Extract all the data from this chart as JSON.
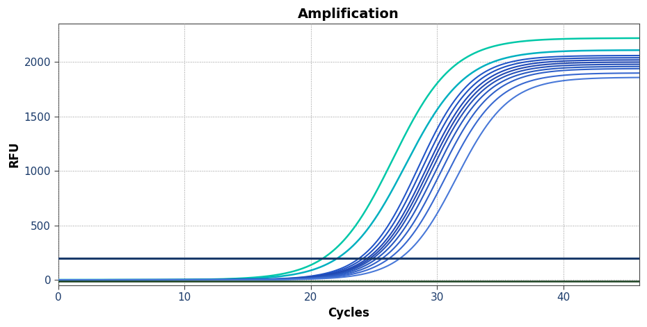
{
  "title": "Amplification",
  "xlabel": "Cycles",
  "ylabel": "RFU",
  "xlim": [
    0,
    46
  ],
  "ylim": [
    -50,
    2350
  ],
  "xticks": [
    0,
    10,
    20,
    30,
    40
  ],
  "yticks": [
    0,
    500,
    1000,
    1500,
    2000
  ],
  "background_color": "#ffffff",
  "threshold_y": 200,
  "threshold_color": "#1a3a6a",
  "threshold_lw": 2.2,
  "baseline_y": -15,
  "baseline_color": "#1a4020",
  "baseline_lw": 1.8,
  "sigmoid_curves": [
    {
      "midpoint": 26.5,
      "plateau": 2220,
      "steepness": 0.42,
      "color": "#00c8a8",
      "lw": 1.8
    },
    {
      "midpoint": 27.5,
      "plateau": 2110,
      "steepness": 0.42,
      "color": "#00b0c0",
      "lw": 1.8
    },
    {
      "midpoint": 28.5,
      "plateau": 2060,
      "steepness": 0.48,
      "color": "#2255c8",
      "lw": 1.5
    },
    {
      "midpoint": 28.8,
      "plateau": 2040,
      "steepness": 0.48,
      "color": "#2050c0",
      "lw": 1.5
    },
    {
      "midpoint": 29.1,
      "plateau": 2020,
      "steepness": 0.48,
      "color": "#1e48b8",
      "lw": 1.5
    },
    {
      "midpoint": 29.3,
      "plateau": 2000,
      "steepness": 0.48,
      "color": "#2248b0",
      "lw": 1.5
    },
    {
      "midpoint": 29.5,
      "plateau": 1980,
      "steepness": 0.48,
      "color": "#2550b8",
      "lw": 1.5
    },
    {
      "midpoint": 29.8,
      "plateau": 1960,
      "steepness": 0.48,
      "color": "#2858c0",
      "lw": 1.5
    },
    {
      "midpoint": 30.2,
      "plateau": 1940,
      "steepness": 0.48,
      "color": "#3060c8",
      "lw": 1.5
    },
    {
      "midpoint": 30.7,
      "plateau": 1900,
      "steepness": 0.48,
      "color": "#3868d0",
      "lw": 1.5
    },
    {
      "midpoint": 31.5,
      "plateau": 1860,
      "steepness": 0.48,
      "color": "#4878d8",
      "lw": 1.5
    }
  ],
  "title_fontsize": 14,
  "axis_label_fontsize": 12,
  "tick_fontsize": 11,
  "grid_color": "#909090",
  "grid_linewidth": 0.7
}
